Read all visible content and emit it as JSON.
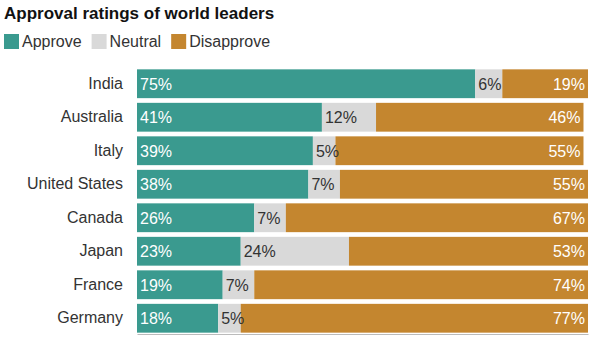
{
  "chart_data": {
    "type": "bar",
    "title": "Approval ratings of world leaders",
    "orientation": "horizontal",
    "stacked": true,
    "data_labels": true,
    "tick_labels": "y",
    "legend": "top-left",
    "categories": [
      "India",
      "Australia",
      "Italy",
      "United States",
      "Canada",
      "Japan",
      "France",
      "Germany"
    ],
    "xlim": [
      0,
      100
    ],
    "series": [
      {
        "name": "Approve",
        "color": "#3a9a8f",
        "values": [
          75,
          41,
          39,
          38,
          26,
          23,
          19,
          18
        ],
        "value_labels": [
          "75%",
          "41%",
          "39%",
          "38%",
          "26%",
          "23%",
          "19%",
          "18%"
        ]
      },
      {
        "name": "Neutral",
        "color": "#d9d9d9",
        "values": [
          6,
          12,
          5,
          7,
          7,
          24,
          7,
          5
        ],
        "value_labels": [
          "6%",
          "12%",
          "5%",
          "7%",
          "7%",
          "24%",
          "7%",
          "5%"
        ]
      },
      {
        "name": "Disapprove",
        "color": "#c4862f",
        "values": [
          19,
          46,
          55,
          55,
          67,
          53,
          74,
          77
        ],
        "value_labels": [
          "19%",
          "46%",
          "55%",
          "55%",
          "67%",
          "53%",
          "74%",
          "77%"
        ]
      }
    ]
  }
}
